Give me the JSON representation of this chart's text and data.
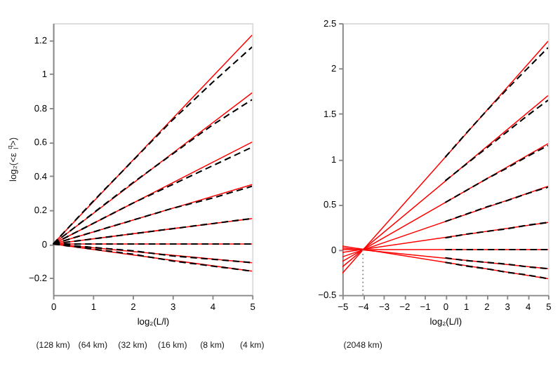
{
  "chart_data": [
    {
      "type": "line",
      "xlabel": "log₂(L/l)",
      "ylabel": "log₂(<ε$_{l}$$^{q}$>)",
      "xlim": [
        0,
        5
      ],
      "ylim": [
        -0.3,
        1.3
      ],
      "xticks": [
        0,
        1,
        2,
        3,
        4,
        5
      ],
      "yticks": [
        -0.2,
        0,
        0.2,
        0.4,
        0.6,
        0.8,
        {
          "value": 1,
          "label": "1"
        },
        1.2
      ],
      "grid": false,
      "legend": false,
      "marker": "none",
      "series": [
        {
          "color": "#ff0000",
          "line_style": "solid",
          "x": [
            0,
            5
          ],
          "values": [
            0,
            1.23
          ]
        },
        {
          "color": "#ff0000",
          "line_style": "solid",
          "x": [
            0,
            5
          ],
          "values": [
            0,
            0.89
          ]
        },
        {
          "color": "#ff0000",
          "line_style": "solid",
          "x": [
            0,
            5
          ],
          "values": [
            0,
            0.6
          ]
        },
        {
          "color": "#ff0000",
          "line_style": "solid",
          "x": [
            0,
            5
          ],
          "values": [
            0,
            0.35
          ]
        },
        {
          "color": "#ff0000",
          "line_style": "solid",
          "x": [
            0,
            5
          ],
          "values": [
            0,
            0.15
          ]
        },
        {
          "color": "#ff0000",
          "line_style": "solid",
          "x": [
            0,
            5
          ],
          "values": [
            0,
            0
          ]
        },
        {
          "color": "#ff0000",
          "line_style": "solid",
          "x": [
            0,
            5
          ],
          "values": [
            0,
            -0.11
          ]
        },
        {
          "color": "#ff0000",
          "line_style": "solid",
          "x": [
            0,
            5
          ],
          "values": [
            0,
            -0.16
          ]
        },
        {
          "color": "#000000",
          "line_style": "dashed",
          "x": [
            0,
            1,
            2,
            3,
            4,
            5
          ],
          "values": [
            0,
            0.25,
            0.49,
            0.73,
            0.95,
            1.16
          ]
        },
        {
          "color": "#000000",
          "line_style": "dashed",
          "x": [
            0,
            1,
            2,
            3,
            4,
            5
          ],
          "values": [
            0,
            0.18,
            0.36,
            0.53,
            0.7,
            0.85
          ]
        },
        {
          "color": "#000000",
          "line_style": "dashed",
          "x": [
            0,
            1,
            2,
            3,
            4,
            5
          ],
          "values": [
            0,
            0.12,
            0.24,
            0.35,
            0.46,
            0.57
          ]
        },
        {
          "color": "#000000",
          "line_style": "dashed",
          "x": [
            0,
            1,
            2,
            3,
            4,
            5
          ],
          "values": [
            0,
            0.07,
            0.14,
            0.21,
            0.27,
            0.34
          ]
        },
        {
          "color": "#000000",
          "line_style": "dashed",
          "x": [
            0,
            1,
            2,
            3,
            4,
            5
          ],
          "values": [
            0,
            0.03,
            0.06,
            0.09,
            0.12,
            0.15
          ]
        },
        {
          "color": "#000000",
          "line_style": "dashed",
          "x": [
            0,
            1,
            2,
            3,
            4,
            5
          ],
          "values": [
            0,
            0,
            0,
            0,
            0,
            0
          ]
        },
        {
          "color": "#000000",
          "line_style": "dashed",
          "x": [
            0,
            1,
            2,
            3,
            4,
            5
          ],
          "values": [
            0,
            -0.02,
            -0.04,
            -0.07,
            -0.09,
            -0.11
          ]
        },
        {
          "color": "#000000",
          "line_style": "dashed",
          "x": [
            0,
            1,
            2,
            3,
            4,
            5
          ],
          "values": [
            0,
            -0.03,
            -0.06,
            -0.1,
            -0.13,
            -0.16
          ]
        }
      ],
      "annotations": [
        "(128 km)",
        "(64 km)",
        "(32 km)",
        "(16 km)",
        "(8 km)",
        "(4 km)"
      ]
    },
    {
      "type": "line",
      "xlabel": "log₂(L/l)",
      "xlim": [
        -5,
        5
      ],
      "ylim": [
        -0.5,
        2.5
      ],
      "xticks": [
        -5,
        -4,
        -3,
        -2,
        -1,
        0,
        1,
        2,
        3,
        4,
        5
      ],
      "yticks": [
        -0.5,
        0,
        0.5,
        1,
        1.5,
        2,
        2.5
      ],
      "grid": false,
      "legend": false,
      "marker": "none",
      "series": [
        {
          "color": "#ff0000",
          "line_style": "solid",
          "x": [
            -5,
            5
          ],
          "values": [
            -0.26,
            2.3
          ]
        },
        {
          "color": "#ff0000",
          "line_style": "solid",
          "x": [
            -5,
            5
          ],
          "values": [
            -0.19,
            1.7
          ]
        },
        {
          "color": "#ff0000",
          "line_style": "solid",
          "x": [
            -5,
            5
          ],
          "values": [
            -0.13,
            1.17
          ]
        },
        {
          "color": "#ff0000",
          "line_style": "solid",
          "x": [
            -5,
            5
          ],
          "values": [
            -0.08,
            0.7
          ]
        },
        {
          "color": "#ff0000",
          "line_style": "solid",
          "x": [
            -5,
            5
          ],
          "values": [
            -0.03,
            0.3
          ]
        },
        {
          "color": "#ff0000",
          "line_style": "solid",
          "x": [
            -5,
            5
          ],
          "values": [
            0,
            0
          ]
        },
        {
          "color": "#ff0000",
          "line_style": "solid",
          "x": [
            -5,
            5
          ],
          "values": [
            0.02,
            -0.21
          ]
        },
        {
          "color": "#ff0000",
          "line_style": "solid",
          "x": [
            -5,
            5
          ],
          "values": [
            0.04,
            -0.32
          ]
        },
        {
          "color": "#000000",
          "line_style": "dashed",
          "x": [
            0,
            1,
            2,
            3,
            4,
            5
          ],
          "values": [
            1.02,
            1.28,
            1.53,
            1.77,
            2.0,
            2.23
          ]
        },
        {
          "color": "#000000",
          "line_style": "dashed",
          "x": [
            0,
            1,
            2,
            3,
            4,
            5
          ],
          "values": [
            0.76,
            0.94,
            1.12,
            1.3,
            1.48,
            1.65
          ]
        },
        {
          "color": "#000000",
          "line_style": "dashed",
          "x": [
            0,
            1,
            2,
            3,
            4,
            5
          ],
          "values": [
            0.52,
            0.65,
            0.78,
            0.9,
            1.03,
            1.15
          ]
        },
        {
          "color": "#000000",
          "line_style": "dashed",
          "x": [
            0,
            1,
            2,
            3,
            4,
            5
          ],
          "values": [
            0.31,
            0.39,
            0.47,
            0.54,
            0.62,
            0.69
          ]
        },
        {
          "color": "#000000",
          "line_style": "dashed",
          "x": [
            0,
            1,
            2,
            3,
            4,
            5
          ],
          "values": [
            0.13,
            0.17,
            0.2,
            0.23,
            0.27,
            0.3
          ]
        },
        {
          "color": "#000000",
          "line_style": "dashed",
          "x": [
            0,
            1,
            2,
            3,
            4,
            5
          ],
          "values": [
            0,
            0,
            0,
            0,
            0,
            0
          ]
        },
        {
          "color": "#000000",
          "line_style": "dashed",
          "x": [
            0,
            1,
            2,
            3,
            4,
            5
          ],
          "values": [
            -0.09,
            -0.12,
            -0.14,
            -0.16,
            -0.19,
            -0.21
          ]
        },
        {
          "color": "#000000",
          "line_style": "dashed",
          "x": [
            0,
            1,
            2,
            3,
            4,
            5
          ],
          "values": [
            -0.14,
            -0.18,
            -0.21,
            -0.25,
            -0.28,
            -0.32
          ]
        },
        {
          "color": "#999999",
          "line_style": "dotted",
          "x": [
            -4,
            -4
          ],
          "values": [
            -0.5,
            0
          ]
        }
      ],
      "annotations": [
        "(2048 km)"
      ]
    }
  ]
}
